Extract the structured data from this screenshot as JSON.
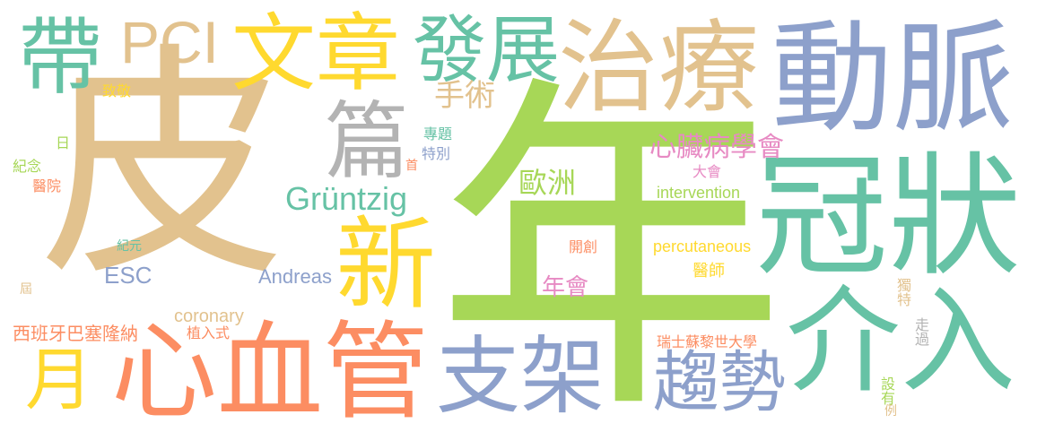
{
  "palette": {
    "tan": "#E2C28E",
    "green": "#A7D757",
    "blue": "#8DA0CB",
    "teal": "#66C2A5",
    "yellow": "#FFD92F",
    "orange": "#FC8D62",
    "gray": "#B3B3B3",
    "pink": "#E78AC3"
  },
  "words": [
    {
      "text": "皮",
      "color": "#E2C28E"
    },
    {
      "text": "年",
      "color": "#A7D757"
    },
    {
      "text": "動脈",
      "color": "#8DA0CB"
    },
    {
      "text": "冠狀",
      "color": "#66C2A5"
    },
    {
      "text": "介入",
      "color": "#66C2A5"
    },
    {
      "text": "治療",
      "color": "#E2C28E"
    },
    {
      "text": "文章",
      "color": "#FFD92F"
    },
    {
      "text": "發展",
      "color": "#66C2A5"
    },
    {
      "text": "PCI",
      "color": "#E2C28E"
    },
    {
      "text": "帶",
      "color": "#66C2A5"
    },
    {
      "text": "篇",
      "color": "#B3B3B3"
    },
    {
      "text": "新",
      "color": "#FFD92F"
    },
    {
      "text": "心血管",
      "color": "#FC8D62"
    },
    {
      "text": "支架",
      "color": "#8DA0CB"
    },
    {
      "text": "趨勢",
      "color": "#8DA0CB"
    },
    {
      "text": "月",
      "color": "#FFD92F"
    },
    {
      "text": "Grüntzig",
      "color": "#66C2A5"
    },
    {
      "text": "心臟病學會",
      "color": "#E78AC3"
    },
    {
      "text": "手術",
      "color": "#E2C28E"
    },
    {
      "text": "歐洲",
      "color": "#A7D757"
    },
    {
      "text": "intervention",
      "color": "#A7D757"
    },
    {
      "text": "percutaneous",
      "color": "#FFD92F"
    },
    {
      "text": "ESC",
      "color": "#8DA0CB"
    },
    {
      "text": "Andreas",
      "color": "#8DA0CB"
    },
    {
      "text": "coronary",
      "color": "#E2C28E"
    },
    {
      "text": "年會",
      "color": "#E78AC3"
    },
    {
      "text": "西班牙巴塞隆納",
      "color": "#FC8D62"
    },
    {
      "text": "植入式",
      "color": "#FC8D62"
    },
    {
      "text": "瑞士蘇黎世大學",
      "color": "#FC8D62"
    },
    {
      "text": "大會",
      "color": "#E78AC3"
    },
    {
      "text": "開創",
      "color": "#FC8D62"
    },
    {
      "text": "醫師",
      "color": "#FFD92F"
    },
    {
      "text": "專題",
      "color": "#66C2A5"
    },
    {
      "text": "特別",
      "color": "#8DA0CB"
    },
    {
      "text": "致敬",
      "color": "#FFD92F"
    },
    {
      "text": "紀念",
      "color": "#A7D757"
    },
    {
      "text": "醫院",
      "color": "#FC8D62"
    },
    {
      "text": "紀元",
      "color": "#66C2A5"
    },
    {
      "text": "日",
      "color": "#A7D757"
    },
    {
      "text": "首",
      "color": "#FC8D62"
    },
    {
      "text": "屆",
      "color": "#E2C28E"
    },
    {
      "text": "獨特",
      "color": "#E2C28E"
    },
    {
      "text": "走過",
      "color": "#B3B3B3"
    },
    {
      "text": "設有",
      "color": "#A7D757"
    },
    {
      "text": "例",
      "color": "#E2C28E"
    }
  ]
}
